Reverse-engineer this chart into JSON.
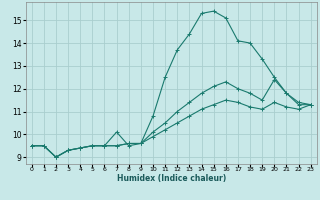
{
  "title": "",
  "xlabel": "Humidex (Indice chaleur)",
  "ylabel": "",
  "bg_color": "#c8e8e8",
  "grid_color": "#aacece",
  "line_color": "#1a7a6e",
  "xlim": [
    -0.5,
    23.5
  ],
  "ylim": [
    8.7,
    15.8
  ],
  "yticks": [
    9,
    10,
    11,
    12,
    13,
    14,
    15
  ],
  "xticks": [
    0,
    1,
    2,
    3,
    4,
    5,
    6,
    7,
    8,
    9,
    10,
    11,
    12,
    13,
    14,
    15,
    16,
    17,
    18,
    19,
    20,
    21,
    22,
    23
  ],
  "series": [
    [
      9.5,
      9.5,
      9.0,
      9.3,
      9.4,
      9.5,
      9.5,
      10.1,
      9.5,
      9.6,
      10.8,
      12.5,
      13.7,
      14.4,
      15.3,
      15.4,
      15.1,
      14.1,
      14.0,
      13.3,
      12.5,
      11.8,
      11.3,
      11.3
    ],
    [
      9.5,
      9.5,
      9.0,
      9.3,
      9.4,
      9.5,
      9.5,
      9.5,
      9.6,
      9.6,
      10.1,
      10.5,
      11.0,
      11.4,
      11.8,
      12.1,
      12.3,
      12.0,
      11.8,
      11.5,
      12.4,
      11.8,
      11.4,
      11.3
    ],
    [
      9.5,
      9.5,
      9.0,
      9.3,
      9.4,
      9.5,
      9.5,
      9.5,
      9.6,
      9.6,
      9.9,
      10.2,
      10.5,
      10.8,
      11.1,
      11.3,
      11.5,
      11.4,
      11.2,
      11.1,
      11.4,
      11.2,
      11.1,
      11.3
    ]
  ]
}
